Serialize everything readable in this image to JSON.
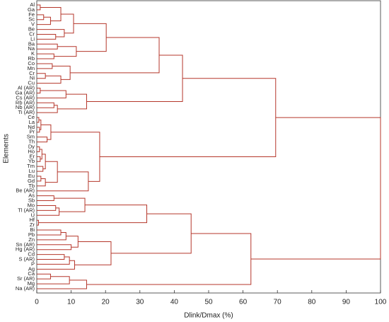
{
  "chart_data": {
    "type": "dendrogram",
    "xlabel": "Dlink/Dmax (%)",
    "ylabel": "Elements",
    "color": "#b5372b",
    "xlim": [
      0,
      100
    ],
    "xticks": [
      0,
      10,
      20,
      30,
      40,
      50,
      60,
      70,
      80,
      90,
      100
    ],
    "tree": {
      "height": 100,
      "children": [
        {
          "height": 69.5,
          "children": [
            {
              "height": 42.4,
              "children": [
                {
                  "height": 35.6,
                  "children": [
                    {
                      "height": 20.2,
                      "children": [
                        {
                          "height": 10.7,
                          "children": [
                            {
                              "height": 7,
                              "children": [
                                {
                                  "height": 1,
                                  "children": [
                                    {
                                      "label": "Al"
                                    },
                                    {
                                      "label": "Ga"
                                    }
                                  ]
                                },
                                {
                                  "height": 4,
                                  "children": [
                                    {
                                      "height": 2,
                                      "children": [
                                        {
                                          "label": "Fe"
                                        },
                                        {
                                          "label": "Sc"
                                        }
                                      ]
                                    },
                                    {
                                      "label": "V"
                                    }
                                  ]
                                }
                              ]
                            },
                            {
                              "height": 8,
                              "children": [
                                {
                                  "label": "Be"
                                },
                                {
                                  "height": 5.5,
                                  "children": [
                                    {
                                      "label": "Cr"
                                    },
                                    {
                                      "label": "Li"
                                    }
                                  ]
                                }
                              ]
                            }
                          ]
                        },
                        {
                          "height": 11.5,
                          "children": [
                            {
                              "height": 6,
                              "children": [
                                {
                                  "label": "Ba"
                                },
                                {
                                  "label": "Na"
                                }
                              ]
                            },
                            {
                              "height": 5,
                              "children": [
                                {
                                  "label": "K"
                                },
                                {
                                  "label": "Rb"
                                }
                              ]
                            }
                          ]
                        }
                      ]
                    },
                    {
                      "height": 9.7,
                      "children": [
                        {
                          "height": 4.5,
                          "children": [
                            {
                              "label": "Co"
                            },
                            {
                              "label": "Mn"
                            }
                          ]
                        },
                        {
                          "height": 7,
                          "children": [
                            {
                              "height": 2.5,
                              "children": [
                                {
                                  "label": "Cr"
                                },
                                {
                                  "label": "Ni"
                                }
                              ]
                            },
                            {
                              "label": "Cu"
                            }
                          ]
                        }
                      ]
                    }
                  ]
                },
                {
                  "height": 14.5,
                  "children": [
                    {
                      "height": 8.5,
                      "children": [
                        {
                          "height": 1,
                          "children": [
                            {
                              "label": "Al (AR)"
                            },
                            {
                              "label": "Ga (AR)"
                            }
                          ]
                        },
                        {
                          "label": "Cs (AR)"
                        }
                      ]
                    },
                    {
                      "height": 6,
                      "children": [
                        {
                          "height": 5,
                          "children": [
                            {
                              "label": "Rb (AR)"
                            },
                            {
                              "label": "Nb (AR)"
                            }
                          ]
                        },
                        {
                          "label": "Ti (AR)"
                        }
                      ]
                    }
                  ]
                }
              ]
            },
            {
              "height": 18.3,
              "children": [
                {
                  "height": 4.1,
                  "children": [
                    {
                      "height": 1.2,
                      "children": [
                        {
                          "height": 0.6,
                          "children": [
                            {
                              "label": "Ce"
                            },
                            {
                              "label": "La"
                            }
                          ]
                        },
                        {
                          "height": 0.8,
                          "children": [
                            {
                              "label": "Nd"
                            },
                            {
                              "label": "Pr"
                            }
                          ]
                        }
                      ]
                    },
                    {
                      "height": 3,
                      "children": [
                        {
                          "label": "Sm"
                        },
                        {
                          "label": "Th"
                        }
                      ]
                    }
                  ]
                },
                {
                  "height": 15,
                  "children": [
                    {
                      "height": 6,
                      "children": [
                        {
                          "height": 2.5,
                          "children": [
                            {
                              "height": 1.5,
                              "children": [
                                {
                                  "height": 0.8,
                                  "children": [
                                    {
                                      "label": "Dy"
                                    },
                                    {
                                      "label": "Ho"
                                    }
                                  ]
                                },
                                {
                                  "height": 1,
                                  "children": [
                                    {
                                      "label": "Er"
                                    },
                                    {
                                      "label": "Yb"
                                    }
                                  ]
                                }
                              ]
                            },
                            {
                              "height": 1.8,
                              "children": [
                                {
                                  "label": "Tm"
                                },
                                {
                                  "label": "Lu"
                                }
                              ]
                            }
                          ]
                        },
                        {
                          "height": 2.5,
                          "children": [
                            {
                              "height": 1.2,
                              "children": [
                                {
                                  "label": "Eu"
                                },
                                {
                                  "label": "Gd"
                                }
                              ]
                            },
                            {
                              "label": "Tb"
                            }
                          ]
                        }
                      ]
                    },
                    {
                      "label": "Be (AR)"
                    }
                  ]
                }
              ]
            }
          ]
        },
        {
          "height": 62.3,
          "children": [
            {
              "height": 44.9,
              "children": [
                {
                  "height": 32,
                  "children": [
                    {
                      "height": 14,
                      "children": [
                        {
                          "height": 5,
                          "children": [
                            {
                              "label": "As"
                            },
                            {
                              "label": "Sb"
                            }
                          ]
                        },
                        {
                          "height": 6.5,
                          "children": [
                            {
                              "height": 5.5,
                              "children": [
                                {
                                  "label": "Mo"
                                },
                                {
                                  "label": "Tl (AR)"
                                }
                              ]
                            },
                            {
                              "label": "U"
                            }
                          ]
                        }
                      ]
                    },
                    {
                      "height": 0.5,
                      "children": [
                        {
                          "label": "Hf"
                        },
                        {
                          "label": "Zr"
                        }
                      ]
                    }
                  ]
                },
                {
                  "height": 21.6,
                  "children": [
                    {
                      "height": 12,
                      "children": [
                        {
                          "height": 8.5,
                          "children": [
                            {
                              "height": 7,
                              "children": [
                                {
                                  "label": "Bi"
                                },
                                {
                                  "label": "Pb"
                                }
                              ]
                            },
                            {
                              "label": "Zn"
                            }
                          ]
                        },
                        {
                          "height": 10,
                          "children": [
                            {
                              "label": "Sn (AR)"
                            },
                            {
                              "label": "Hg (AR)"
                            }
                          ]
                        }
                      ]
                    },
                    {
                      "height": 11,
                      "children": [
                        {
                          "height": 9.5,
                          "children": [
                            {
                              "height": 8,
                              "children": [
                                {
                                  "label": "Cd"
                                },
                                {
                                  "label": "S (AR)"
                                }
                              ]
                            },
                            {
                              "label": "P"
                            }
                          ]
                        },
                        {
                          "label": "Ag"
                        }
                      ]
                    }
                  ]
                }
              ]
            },
            {
              "height": 14.5,
              "children": [
                {
                  "height": 9.5,
                  "children": [
                    {
                      "height": 4,
                      "children": [
                        {
                          "label": "Ca"
                        },
                        {
                          "label": "Sr (AR)"
                        }
                      ]
                    },
                    {
                      "label": "Mg"
                    }
                  ]
                },
                {
                  "label": "Na (AR)"
                }
              ]
            }
          ]
        }
      ]
    }
  }
}
